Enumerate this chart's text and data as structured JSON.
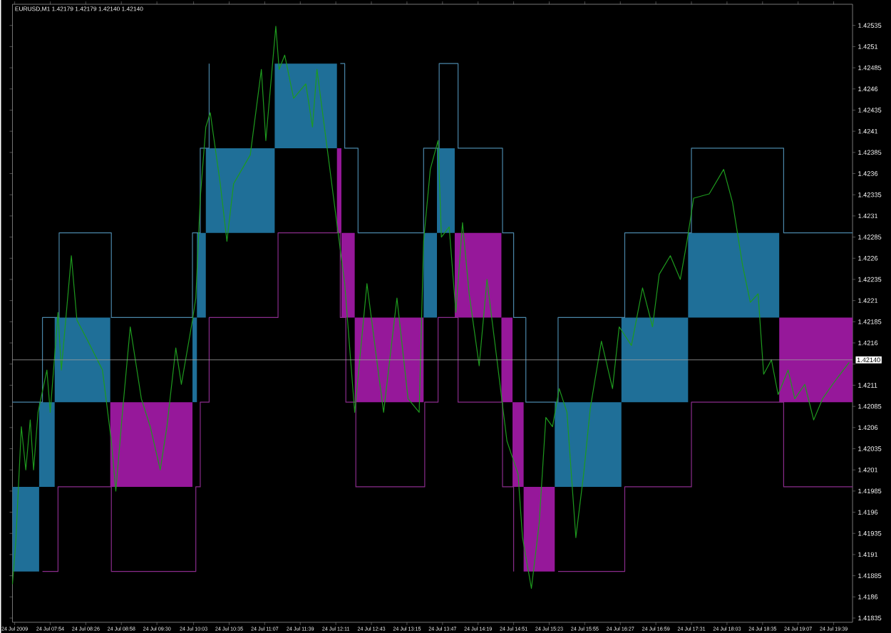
{
  "chart_data": {
    "type": "line",
    "title": "EURUSD,M1  1.42179 1.42179 1.42140 1.42140",
    "xlim": [
      "2009-07-24T07:20",
      "2009-07-24T19:56"
    ],
    "ylim": [
      1.4183,
      1.4256
    ],
    "xticks": [
      {
        "value": "2009-07-24T07:22",
        "label": "24 Jul 2009"
      },
      {
        "value": "2009-07-24T07:54",
        "label": "24 Jul 07:54"
      },
      {
        "value": "2009-07-24T08:26",
        "label": "24 Jul 08:26"
      },
      {
        "value": "2009-07-24T08:58",
        "label": "24 Jul 08:58"
      },
      {
        "value": "2009-07-24T09:30",
        "label": "24 Jul 09:30"
      },
      {
        "value": "2009-07-24T10:03",
        "label": "24 Jul 10:03"
      },
      {
        "value": "2009-07-24T10:35",
        "label": "24 Jul 10:35"
      },
      {
        "value": "2009-07-24T11:07",
        "label": "24 Jul 11:07"
      },
      {
        "value": "2009-07-24T11:39",
        "label": "24 Jul 11:39"
      },
      {
        "value": "2009-07-24T12:11",
        "label": "24 Jul 12:11"
      },
      {
        "value": "2009-07-24T12:43",
        "label": "24 Jul 12:43"
      },
      {
        "value": "2009-07-24T13:15",
        "label": "24 Jul 13:15"
      },
      {
        "value": "2009-07-24T13:47",
        "label": "24 Jul 13:47"
      },
      {
        "value": "2009-07-24T14:19",
        "label": "24 Jul 14:19"
      },
      {
        "value": "2009-07-24T14:51",
        "label": "24 Jul 14:51"
      },
      {
        "value": "2009-07-24T15:23",
        "label": "24 Jul 15:23"
      },
      {
        "value": "2009-07-24T15:55",
        "label": "24 Jul 15:55"
      },
      {
        "value": "2009-07-24T16:27",
        "label": "24 Jul 16:27"
      },
      {
        "value": "2009-07-24T16:59",
        "label": "24 Jul 16:59"
      },
      {
        "value": "2009-07-24T17:31",
        "label": "24 Jul 17:31"
      },
      {
        "value": "2009-07-24T18:03",
        "label": "24 Jul 18:03"
      },
      {
        "value": "2009-07-24T18:35",
        "label": "24 Jul 18:35"
      },
      {
        "value": "2009-07-24T19:07",
        "label": "24 Jul 19:07"
      },
      {
        "value": "2009-07-24T19:39",
        "label": "24 Jul 19:39"
      }
    ],
    "yticks": [
      1.41835,
      1.4186,
      1.41885,
      1.4191,
      1.41935,
      1.4196,
      1.41985,
      1.4201,
      1.42035,
      1.4206,
      1.42085,
      1.4211,
      {
        "value": 1.42135,
        "label": null
      },
      1.4216,
      1.42185,
      1.4221,
      1.42235,
      1.4226,
      1.42285,
      1.4231,
      1.42335,
      1.4236,
      1.42385,
      1.4241,
      1.42435,
      1.4246,
      1.42485,
      1.4251,
      1.42535
    ],
    "ref_lines": [
      {
        "axis": "y",
        "value": 1.4214,
        "label": "1.42140",
        "color": "#a0a0a0"
      }
    ],
    "series": [
      {
        "type": "bar",
        "x": [
          "2009-07-24T07:32",
          "2009-07-24T07:51",
          "2009-07-24T08:23",
          "2009-07-24T09:25",
          "2009-07-24T10:04",
          "2009-07-24T10:10",
          "2009-07-24T10:45",
          "2009-07-24T11:44",
          "2009-07-24T12:14",
          "2009-07-24T12:22",
          "2009-07-24T12:59",
          "2009-07-24T13:36",
          "2009-07-24T13:50",
          "2009-07-24T14:19",
          "2009-07-24T14:45",
          "2009-07-24T14:55",
          "2009-07-24T15:14",
          "2009-07-24T15:58",
          "2009-07-24T16:58",
          "2009-07-24T18:09",
          "2009-07-24T19:23"
        ],
        "values": [
          0.001,
          0.001,
          0.001,
          0.001,
          0.001,
          0.001,
          0.001,
          0.001,
          0.001,
          0.001,
          0.001,
          0.001,
          0.001,
          0.001,
          0.001,
          0.001,
          0.001,
          0.001,
          0.001,
          0.001,
          0.001
        ],
        "base": [
          1.4189,
          1.4199,
          1.4209,
          1.4199,
          1.4209,
          1.4219,
          1.4229,
          1.4239,
          1.4229,
          1.4219,
          1.4209,
          1.4219,
          1.4229,
          1.4219,
          1.4209,
          1.4199,
          1.4189,
          1.4199,
          1.4209,
          1.4219,
          1.4209
        ],
        "colors": [
          "#1f6f98",
          "#1f6f98",
          "#1f6f98",
          "#96189a",
          "#1f6f98",
          "#1f6f98",
          "#1f6f98",
          "#1f6f98",
          "#96189a",
          "#96189a",
          "#96189a",
          "#1f6f98",
          "#1f6f98",
          "#96189a",
          "#96189a",
          "#96189a",
          "#96189a",
          "#1f6f98",
          "#1f6f98",
          "#1f6f98",
          "#96189a"
        ]
      },
      {
        "type": "step",
        "color": "#4a86a8",
        "x": [
          "2009-07-24T07:20",
          "2009-07-24T07:47",
          "2009-07-24T08:02",
          "2009-07-24T08:49",
          "2009-07-24T10:02",
          "2009-07-24T10:09",
          "2009-07-24T10:17",
          "2009-07-24T11:19",
          "2009-07-24T12:15",
          "2009-07-24T12:19",
          "2009-07-24T12:31",
          "2009-07-24T13:30",
          "2009-07-24T13:44",
          "2009-07-24T14:01",
          "2009-07-24T14:41",
          "2009-07-24T14:51",
          "2009-07-24T15:02",
          "2009-07-24T15:31",
          "2009-07-24T16:31",
          "2009-07-24T17:31",
          "2009-07-24T18:54",
          "2009-07-24T19:56"
        ],
        "values": [
          1.4209,
          1.4219,
          1.4229,
          1.4219,
          1.4229,
          1.4239,
          1.4249,
          null,
          1.4249,
          1.4239,
          1.4229,
          1.4239,
          1.4249,
          1.4239,
          1.4229,
          1.4219,
          1.4209,
          1.4219,
          1.4229,
          1.4239,
          1.4229,
          1.4229
        ]
      },
      {
        "type": "step",
        "color": "#8a2c8c",
        "x": [
          "2009-07-24T07:47",
          "2009-07-24T08:01",
          "2009-07-24T08:49",
          "2009-07-24T10:05",
          "2009-07-24T10:09",
          "2009-07-24T10:17",
          "2009-07-24T11:19",
          "2009-07-24T12:15",
          "2009-07-24T12:20",
          "2009-07-24T12:29",
          "2009-07-24T13:31",
          "2009-07-24T13:43",
          "2009-07-24T14:01",
          "2009-07-24T14:41",
          "2009-07-24T14:51",
          "2009-07-24T15:02",
          "2009-07-24T15:31",
          "2009-07-24T16:31",
          "2009-07-24T17:31",
          "2009-07-24T18:54",
          "2009-07-24T19:56"
        ],
        "values": [
          1.4189,
          1.4199,
          1.4189,
          1.4199,
          1.4209,
          1.4219,
          1.4229,
          1.4219,
          1.4209,
          1.4199,
          1.4209,
          1.4219,
          1.4209,
          1.4199,
          1.4189,
          null,
          1.4189,
          1.4199,
          1.4209,
          1.4199,
          1.4199
        ]
      },
      {
        "color": "#1e9a1e",
        "x": [
          "2009-07-24T07:20",
          "2009-07-24T07:23",
          "2009-07-24T07:28",
          "2009-07-24T07:32",
          "2009-07-24T07:36",
          "2009-07-24T07:39",
          "2009-07-24T07:43",
          "2009-07-24T07:51",
          "2009-07-24T07:54",
          "2009-07-24T08:01",
          "2009-07-24T08:04",
          "2009-07-24T08:13",
          "2009-07-24T08:18",
          "2009-07-24T08:28",
          "2009-07-24T08:41",
          "2009-07-24T08:49",
          "2009-07-24T08:53",
          "2009-07-24T08:59",
          "2009-07-24T09:06",
          "2009-07-24T09:16",
          "2009-07-24T09:24",
          "2009-07-24T09:33",
          "2009-07-24T09:39",
          "2009-07-24T09:47",
          "2009-07-24T09:52",
          "2009-07-24T10:02",
          "2009-07-24T10:05",
          "2009-07-24T10:09",
          "2009-07-24T10:14",
          "2009-07-24T10:18",
          "2009-07-24T10:27",
          "2009-07-24T10:33",
          "2009-07-24T10:39",
          "2009-07-24T10:54",
          "2009-07-24T11:04",
          "2009-07-24T11:08",
          "2009-07-24T11:17",
          "2009-07-24T11:20",
          "2009-07-24T11:25",
          "2009-07-24T11:33",
          "2009-07-24T11:44",
          "2009-07-24T11:50",
          "2009-07-24T11:54",
          "2009-07-24T12:04",
          "2009-07-24T12:09",
          "2009-07-24T12:19",
          "2009-07-24T12:23",
          "2009-07-24T12:28",
          "2009-07-24T12:39",
          "2009-07-24T12:49",
          "2009-07-24T12:54",
          "2009-07-24T13:06",
          "2009-07-24T13:16",
          "2009-07-24T13:26",
          "2009-07-24T13:30",
          "2009-07-24T13:36",
          "2009-07-24T13:43",
          "2009-07-24T13:46",
          "2009-07-24T13:53",
          "2009-07-24T13:59",
          "2009-07-24T14:05",
          "2009-07-24T14:11",
          "2009-07-24T14:20",
          "2009-07-24T14:27",
          "2009-07-24T14:36",
          "2009-07-24T14:45",
          "2009-07-24T14:55",
          "2009-07-24T14:59",
          "2009-07-24T15:07",
          "2009-07-24T15:14",
          "2009-07-24T15:20",
          "2009-07-24T15:26",
          "2009-07-24T15:32",
          "2009-07-24T15:39",
          "2009-07-24T15:47",
          "2009-07-24T15:54",
          "2009-07-24T16:00",
          "2009-07-24T16:10",
          "2009-07-24T16:20",
          "2009-07-24T16:26",
          "2009-07-24T16:37",
          "2009-07-24T16:47",
          "2009-07-24T16:56",
          "2009-07-24T17:02",
          "2009-07-24T17:12",
          "2009-07-24T17:21",
          "2009-07-24T17:27",
          "2009-07-24T17:33",
          "2009-07-24T17:47",
          "2009-07-24T18:00",
          "2009-07-24T18:08",
          "2009-07-24T18:17",
          "2009-07-24T18:24",
          "2009-07-24T18:31",
          "2009-07-24T18:36",
          "2009-07-24T18:43",
          "2009-07-24T18:49",
          "2009-07-24T18:58",
          "2009-07-24T19:04",
          "2009-07-24T19:13",
          "2009-07-24T19:21",
          "2009-07-24T19:29",
          "2009-07-24T19:38",
          "2009-07-24T19:46",
          "2009-07-24T19:53"
        ],
        "values": [
          1.41875,
          1.41925,
          1.42061,
          1.4201,
          1.42069,
          1.4201,
          1.42078,
          1.42128,
          1.42078,
          1.42196,
          1.42128,
          1.42263,
          1.42187,
          1.42162,
          1.42128,
          1.42044,
          1.41985,
          1.42078,
          1.42179,
          1.42094,
          1.42061,
          1.4201,
          1.42061,
          1.42154,
          1.42111,
          1.42187,
          1.42213,
          1.42331,
          1.42415,
          1.42432,
          1.42348,
          1.4228,
          1.42348,
          1.42382,
          1.42483,
          1.42399,
          1.42534,
          1.42483,
          1.425,
          1.42449,
          1.42466,
          1.42415,
          1.42483,
          1.42382,
          1.42331,
          1.4223,
          1.42162,
          1.42078,
          1.4223,
          1.42128,
          1.42078,
          1.42213,
          1.42094,
          1.42078,
          1.4228,
          1.42365,
          1.42399,
          1.42285,
          1.42297,
          1.42196,
          1.42302,
          1.42218,
          1.42133,
          1.42235,
          1.4214,
          1.42044,
          1.42005,
          1.4193,
          1.4187,
          1.41947,
          1.42072,
          1.42061,
          1.42106,
          1.42078,
          1.4193,
          1.42005,
          1.42083,
          1.42162,
          1.42106,
          1.42179,
          1.42157,
          1.42225,
          1.42179,
          1.42241,
          1.42263,
          1.42235,
          1.4228,
          1.42331,
          1.42336,
          1.42365,
          1.42326,
          1.42252,
          1.42208,
          1.42218,
          1.42123,
          1.4214,
          1.42099,
          1.42128,
          1.42094,
          1.42111,
          1.42069,
          1.42094,
          1.42111,
          1.42125,
          1.42137
        ]
      }
    ]
  }
}
